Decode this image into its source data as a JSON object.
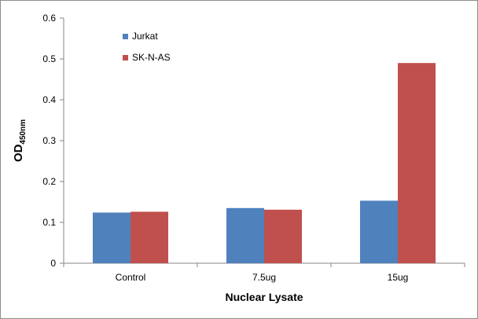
{
  "chart_data": {
    "type": "bar",
    "categories": [
      "Control",
      "7.5ug",
      "15ug"
    ],
    "series": [
      {
        "name": "Jurkat",
        "values": [
          0.124,
          0.135,
          0.153
        ],
        "color": "#4f81bd"
      },
      {
        "name": "SK-N-AS",
        "values": [
          0.126,
          0.131,
          0.49
        ],
        "color": "#c0504d"
      }
    ],
    "ylim": [
      0,
      0.6
    ],
    "yticks": [
      "0",
      "0.1",
      "0.2",
      "0.3",
      "0.4",
      "0.5",
      "0.6"
    ],
    "ylabel": {
      "main": "OD",
      "sub": "450nm"
    },
    "xlabel": "Nuclear Lysate",
    "legend_position": "top-left",
    "grid": false
  }
}
